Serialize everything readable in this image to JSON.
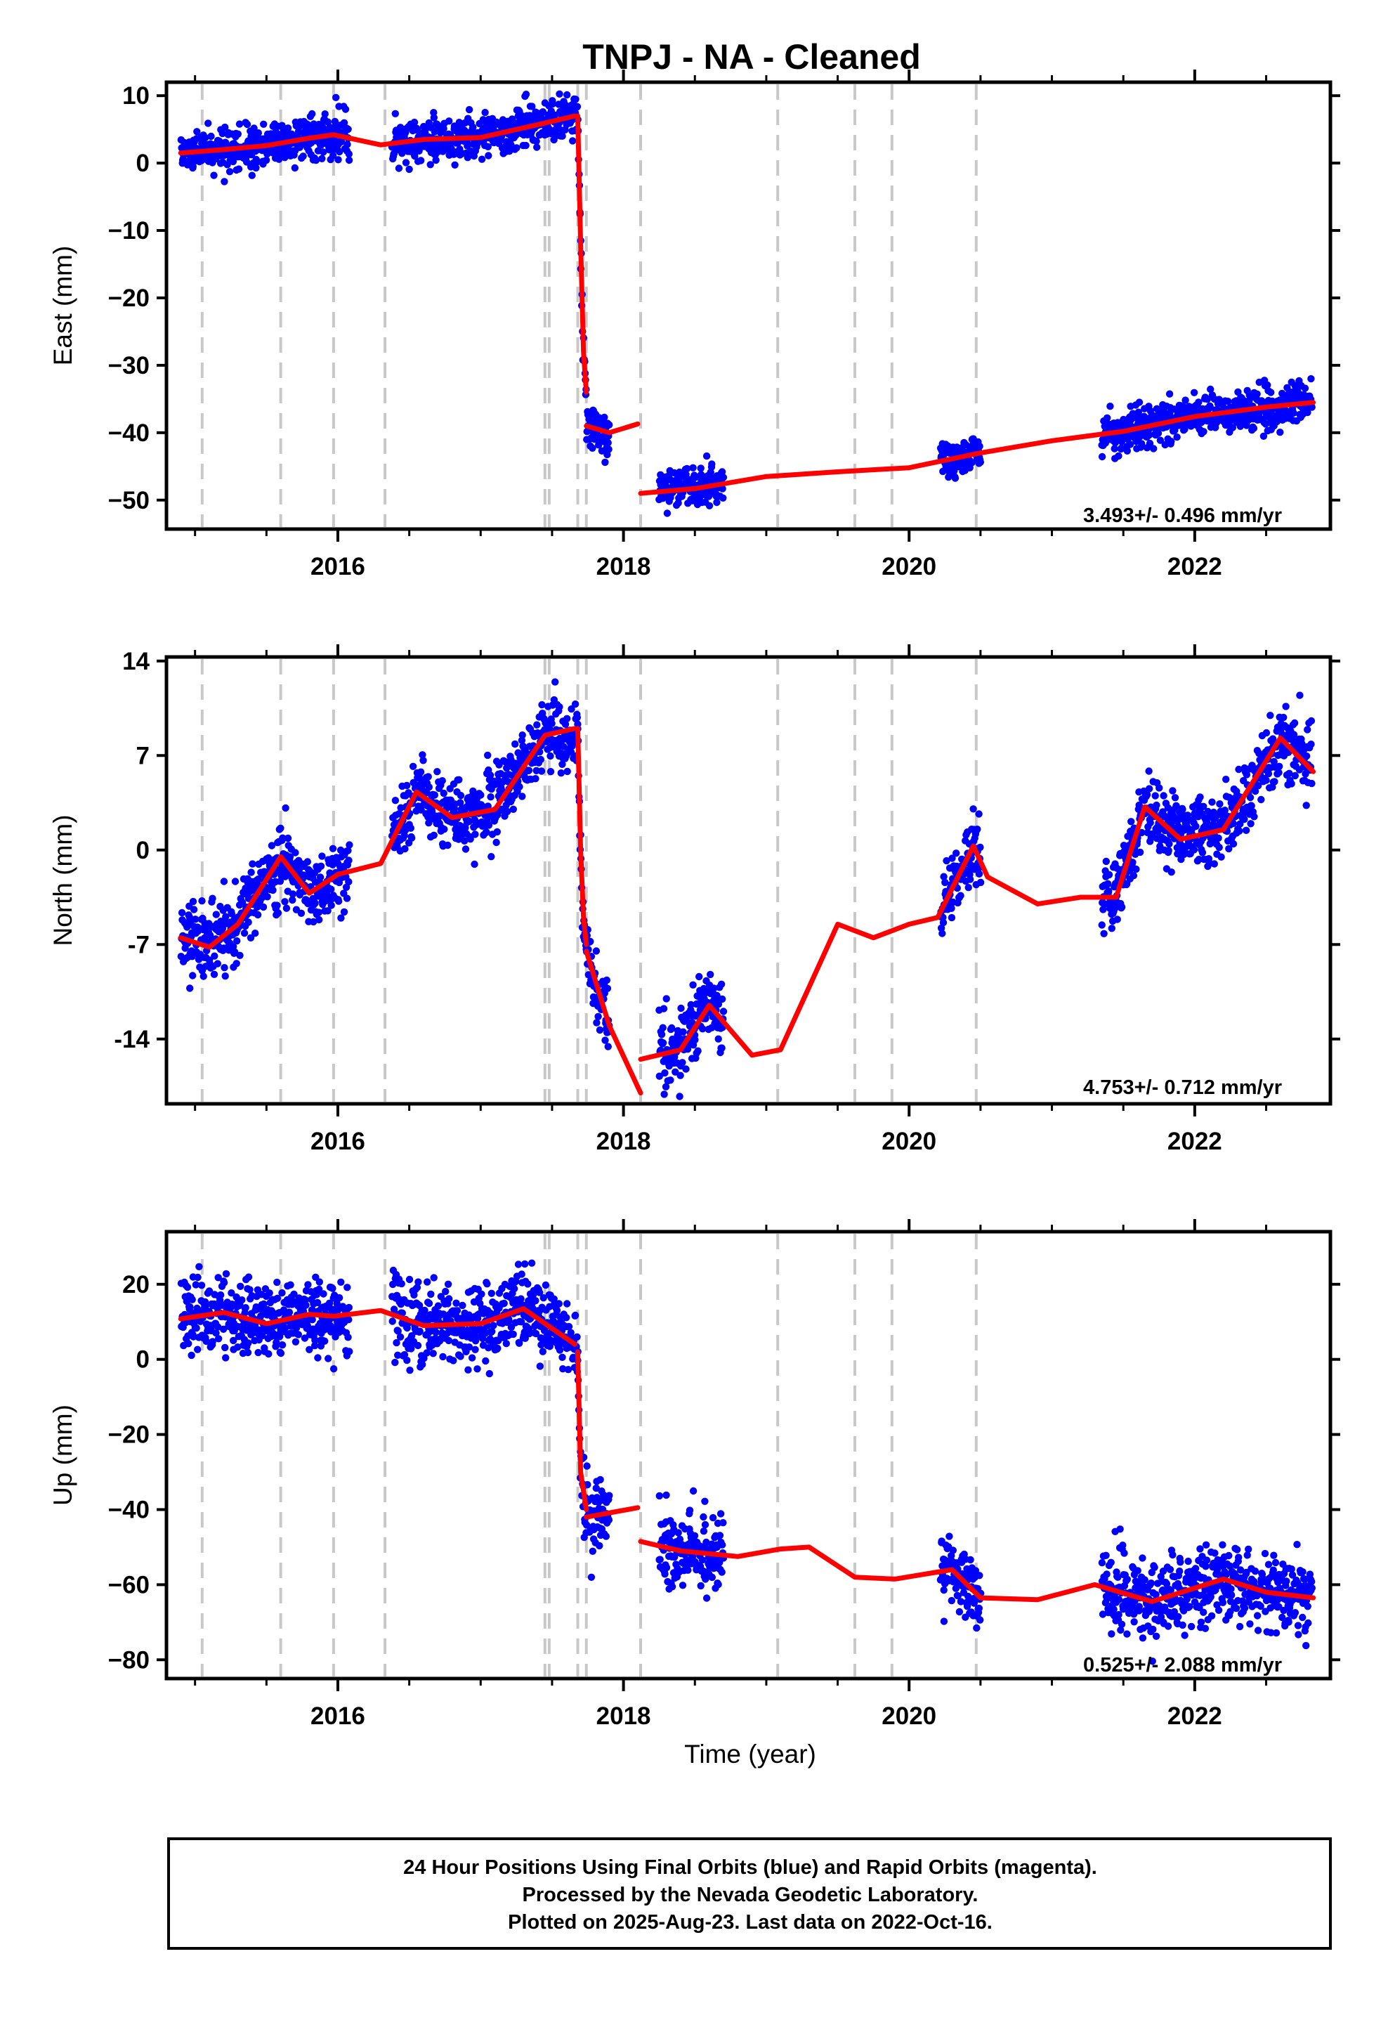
{
  "colors": {
    "points": "#0000ff",
    "model": "#ff0000",
    "event_lines": "#c8c8c8",
    "frame": "#000000"
  },
  "chart_data": [
    {
      "type": "scatter",
      "title": "TNPJ  - NA - Cleaned",
      "xlabel": "",
      "ylabel": "East (mm)",
      "xlim": [
        2014.8,
        2022.95
      ],
      "ylim": [
        -54.3,
        12
      ],
      "x_ticks": [
        2016,
        2018,
        2020,
        2022
      ],
      "y_ticks": [
        10,
        0,
        -10,
        -20,
        -30,
        -40,
        -50
      ],
      "y_tick_labels": [
        "10",
        "0",
        "−10",
        "−20",
        "−30",
        "−40",
        "−50"
      ],
      "rate_text": "3.493+/- 0.496 mm/yr",
      "event_lines": [
        2015.05,
        2015.6,
        2015.97,
        2016.33,
        2017.45,
        2017.48,
        2017.68,
        2017.74,
        2018.12,
        2019.08,
        2019.62,
        2019.88,
        2020.47
      ],
      "segments": [
        {
          "start": 2014.9,
          "end": 2017.68,
          "points": [
            [
              2014.9,
              1.5
            ],
            [
              2015.2,
              2
            ],
            [
              2015.5,
              2.6
            ],
            [
              2015.8,
              3.7
            ],
            [
              2015.97,
              4.2
            ],
            [
              2016.3,
              2.7
            ],
            [
              2016.6,
              3.5
            ],
            [
              2017.0,
              3.8
            ],
            [
              2017.4,
              5.7
            ],
            [
              2017.66,
              7.0
            ]
          ]
        },
        {
          "start": 2017.68,
          "end": 2017.74,
          "points": [
            [
              2017.68,
              7
            ],
            [
              2017.7,
              -12
            ],
            [
              2017.72,
              -28
            ],
            [
              2017.74,
              -34
            ]
          ]
        },
        {
          "start": 2017.74,
          "end": 2018.12,
          "points": [
            [
              2017.74,
              -39
            ],
            [
              2017.9,
              -40
            ],
            [
              2018.1,
              -38.7
            ]
          ]
        },
        {
          "start": 2018.12,
          "end": 2022.83,
          "points": [
            [
              2018.12,
              -49
            ],
            [
              2018.5,
              -48.3
            ],
            [
              2019.0,
              -46.5
            ],
            [
              2019.5,
              -45.8
            ],
            [
              2020.0,
              -45.2
            ],
            [
              2020.5,
              -43
            ],
            [
              2021.0,
              -41.2
            ],
            [
              2021.5,
              -39.8
            ],
            [
              2022.0,
              -37.6
            ],
            [
              2022.5,
              -36.2
            ],
            [
              2022.83,
              -35.5
            ]
          ]
        }
      ],
      "data_windows": [
        [
          2014.9,
          2016.08
        ],
        [
          2016.38,
          2017.68
        ],
        [
          2017.68,
          2017.9
        ],
        [
          2018.25,
          2018.7
        ],
        [
          2020.22,
          2020.5
        ],
        [
          2021.35,
          2022.82
        ]
      ],
      "noise": 1.5,
      "seed": 11
    },
    {
      "type": "scatter",
      "title": "",
      "xlabel": "",
      "ylabel": "North (mm)",
      "xlim": [
        2014.8,
        2022.95
      ],
      "ylim": [
        -18.8,
        14.3
      ],
      "x_ticks": [
        2016,
        2018,
        2020,
        2022
      ],
      "y_ticks": [
        14,
        7,
        0,
        -7,
        -14
      ],
      "y_tick_labels": [
        "14",
        "7",
        "0",
        "-7",
        "-14"
      ],
      "rate_text": "4.753+/- 0.712 mm/yr",
      "event_lines": [
        2015.05,
        2015.6,
        2015.97,
        2016.33,
        2017.45,
        2017.48,
        2017.68,
        2017.74,
        2018.12,
        2019.08,
        2019.62,
        2019.88,
        2020.47
      ],
      "segments": [
        {
          "start": 2014.9,
          "end": 2017.68,
          "points": [
            [
              2014.9,
              -6.5
            ],
            [
              2015.1,
              -7.2
            ],
            [
              2015.3,
              -5.5
            ],
            [
              2015.6,
              -0.5
            ],
            [
              2015.8,
              -3.2
            ],
            [
              2016.0,
              -1.8
            ],
            [
              2016.3,
              -1.0
            ],
            [
              2016.55,
              4.3
            ],
            [
              2016.8,
              2.4
            ],
            [
              2017.1,
              3.0
            ],
            [
              2017.45,
              8.5
            ],
            [
              2017.66,
              9.0
            ]
          ]
        },
        {
          "start": 2017.68,
          "end": 2017.74,
          "points": [
            [
              2017.68,
              9
            ],
            [
              2017.7,
              0
            ],
            [
              2017.72,
              -5
            ],
            [
              2017.74,
              -7
            ]
          ]
        },
        {
          "start": 2017.74,
          "end": 2018.12,
          "points": [
            [
              2017.74,
              -7.5
            ],
            [
              2017.9,
              -13
            ],
            [
              2018.12,
              -18
            ]
          ]
        },
        {
          "start": 2018.12,
          "end": 2022.83,
          "points": [
            [
              2018.12,
              -15.5
            ],
            [
              2018.4,
              -14.8
            ],
            [
              2018.6,
              -11.5
            ],
            [
              2018.9,
              -15.2
            ],
            [
              2019.1,
              -14.8
            ],
            [
              2019.5,
              -5.5
            ],
            [
              2019.75,
              -6.5
            ],
            [
              2020.0,
              -5.5
            ],
            [
              2020.2,
              -5
            ],
            [
              2020.45,
              0.3
            ],
            [
              2020.55,
              -2
            ],
            [
              2020.9,
              -4
            ],
            [
              2021.2,
              -3.5
            ],
            [
              2021.45,
              -3.5
            ],
            [
              2021.65,
              3.2
            ],
            [
              2021.9,
              0.8
            ],
            [
              2022.2,
              1.5
            ],
            [
              2022.6,
              8.3
            ],
            [
              2022.83,
              5.8
            ]
          ]
        }
      ],
      "data_windows": [
        [
          2014.9,
          2016.08
        ],
        [
          2016.38,
          2017.68
        ],
        [
          2017.68,
          2017.9
        ],
        [
          2018.25,
          2018.7
        ],
        [
          2020.22,
          2020.5
        ],
        [
          2021.35,
          2022.82
        ]
      ],
      "noise": 1.3,
      "seed": 23
    },
    {
      "type": "scatter",
      "title": "",
      "xlabel": "Time (year)",
      "ylabel": "Up (mm)",
      "xlim": [
        2014.8,
        2022.95
      ],
      "ylim": [
        -85,
        34
      ],
      "x_ticks": [
        2016,
        2018,
        2020,
        2022
      ],
      "y_ticks": [
        20,
        0,
        -20,
        -40,
        -60,
        -80
      ],
      "y_tick_labels": [
        "20",
        "0",
        "−20",
        "−40",
        "−60",
        "−80"
      ],
      "rate_text": "0.525+/- 2.088 mm/yr",
      "event_lines": [
        2015.05,
        2015.6,
        2015.97,
        2016.33,
        2017.45,
        2017.48,
        2017.68,
        2017.74,
        2018.12,
        2019.08,
        2019.62,
        2019.88,
        2020.47
      ],
      "segments": [
        {
          "start": 2014.9,
          "end": 2017.68,
          "points": [
            [
              2014.9,
              10.8
            ],
            [
              2015.2,
              12.5
            ],
            [
              2015.5,
              9.5
            ],
            [
              2015.8,
              12
            ],
            [
              2015.97,
              11.5
            ],
            [
              2016.3,
              13
            ],
            [
              2016.6,
              9
            ],
            [
              2017.0,
              9.5
            ],
            [
              2017.3,
              13.5
            ],
            [
              2017.66,
              4
            ]
          ]
        },
        {
          "start": 2017.68,
          "end": 2017.74,
          "points": [
            [
              2017.68,
              2
            ],
            [
              2017.7,
              -30
            ],
            [
              2017.74,
              -40
            ]
          ]
        },
        {
          "start": 2017.74,
          "end": 2018.12,
          "points": [
            [
              2017.74,
              -42
            ],
            [
              2018.1,
              -39.5
            ]
          ]
        },
        {
          "start": 2018.12,
          "end": 2022.83,
          "points": [
            [
              2018.12,
              -48.5
            ],
            [
              2018.4,
              -51
            ],
            [
              2018.8,
              -52.5
            ],
            [
              2019.1,
              -50.5
            ],
            [
              2019.3,
              -50
            ],
            [
              2019.62,
              -58
            ],
            [
              2019.9,
              -58.5
            ],
            [
              2020.3,
              -56
            ],
            [
              2020.5,
              -63.5
            ],
            [
              2020.9,
              -64
            ],
            [
              2021.3,
              -60
            ],
            [
              2021.7,
              -64.5
            ],
            [
              2022.2,
              -58.5
            ],
            [
              2022.5,
              -62
            ],
            [
              2022.83,
              -63.5
            ]
          ]
        }
      ],
      "data_windows": [
        [
          2014.9,
          2016.08
        ],
        [
          2016.38,
          2017.68
        ],
        [
          2017.68,
          2017.9
        ],
        [
          2018.25,
          2018.7
        ],
        [
          2020.22,
          2020.5
        ],
        [
          2021.35,
          2022.82
        ]
      ],
      "noise": 5,
      "seed": 37
    }
  ],
  "footer": {
    "line1": "24 Hour Positions Using Final Orbits (blue) and Rapid Orbits (magenta).",
    "line2": "Processed by the Nevada Geodetic Laboratory.",
    "line3": "Plotted on 2025-Aug-23. Last data on 2022-Oct-16."
  }
}
